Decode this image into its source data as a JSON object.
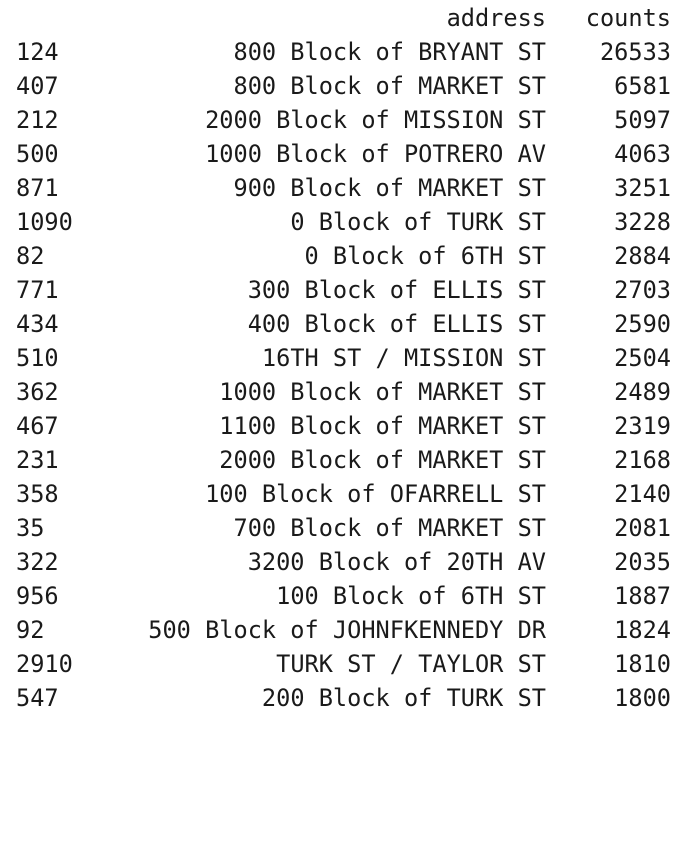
{
  "table": {
    "columns": {
      "address": "address",
      "counts": "counts"
    },
    "rows": [
      {
        "index": "124",
        "address": "800 Block of BRYANT ST",
        "counts": "26533"
      },
      {
        "index": "407",
        "address": "800 Block of MARKET ST",
        "counts": "6581"
      },
      {
        "index": "212",
        "address": "2000 Block of MISSION ST",
        "counts": "5097"
      },
      {
        "index": "500",
        "address": "1000 Block of POTRERO AV",
        "counts": "4063"
      },
      {
        "index": "871",
        "address": "900 Block of MARKET ST",
        "counts": "3251"
      },
      {
        "index": "1090",
        "address": "0 Block of TURK ST",
        "counts": "3228"
      },
      {
        "index": "82",
        "address": "0 Block of 6TH ST",
        "counts": "2884"
      },
      {
        "index": "771",
        "address": "300 Block of ELLIS ST",
        "counts": "2703"
      },
      {
        "index": "434",
        "address": "400 Block of ELLIS ST",
        "counts": "2590"
      },
      {
        "index": "510",
        "address": "16TH ST / MISSION ST",
        "counts": "2504"
      },
      {
        "index": "362",
        "address": "1000 Block of MARKET ST",
        "counts": "2489"
      },
      {
        "index": "467",
        "address": "1100 Block of MARKET ST",
        "counts": "2319"
      },
      {
        "index": "231",
        "address": "2000 Block of MARKET ST",
        "counts": "2168"
      },
      {
        "index": "358",
        "address": "100 Block of OFARRELL ST",
        "counts": "2140"
      },
      {
        "index": "35",
        "address": "700 Block of MARKET ST",
        "counts": "2081"
      },
      {
        "index": "322",
        "address": "3200 Block of 20TH AV",
        "counts": "2035"
      },
      {
        "index": "956",
        "address": "100 Block of 6TH ST",
        "counts": "1887"
      },
      {
        "index": "92",
        "address": "500 Block of JOHNFKENNEDY DR",
        "counts": "1824"
      },
      {
        "index": "2910",
        "address": "TURK ST / TAYLOR ST",
        "counts": "1810"
      },
      {
        "index": "547",
        "address": "200 Block of TURK ST",
        "counts": "1800"
      }
    ]
  }
}
